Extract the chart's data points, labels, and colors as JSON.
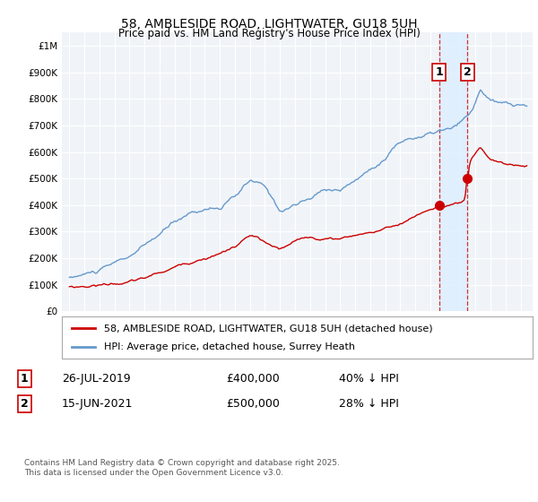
{
  "title": "58, AMBLESIDE ROAD, LIGHTWATER, GU18 5UH",
  "subtitle": "Price paid vs. HM Land Registry's House Price Index (HPI)",
  "ytick_vals": [
    0,
    100000,
    200000,
    300000,
    400000,
    500000,
    600000,
    700000,
    800000,
    900000,
    1000000
  ],
  "ylim": [
    0,
    1050000
  ],
  "line1_color": "#cc0000",
  "line2_color": "#6699cc",
  "shade_color": "#ddeeff",
  "legend_label1": "58, AMBLESIDE ROAD, LIGHTWATER, GU18 5UH (detached house)",
  "legend_label2": "HPI: Average price, detached house, Surrey Heath",
  "marker1_year": 2019.57,
  "marker2_year": 2021.46,
  "marker1_price": 400000,
  "marker2_price": 500000,
  "annotation1": [
    "1",
    "26-JUL-2019",
    "£400,000",
    "40% ↓ HPI"
  ],
  "annotation2": [
    "2",
    "15-JUN-2021",
    "£500,000",
    "28% ↓ HPI"
  ],
  "footer": "Contains HM Land Registry data © Crown copyright and database right 2025.\nThis data is licensed under the Open Government Licence v3.0.",
  "bg_color": "#ffffff",
  "plot_bg_color": "#f0f4f8",
  "grid_color": "#ffffff",
  "xlim_left": 1994.5,
  "xlim_right": 2025.8
}
